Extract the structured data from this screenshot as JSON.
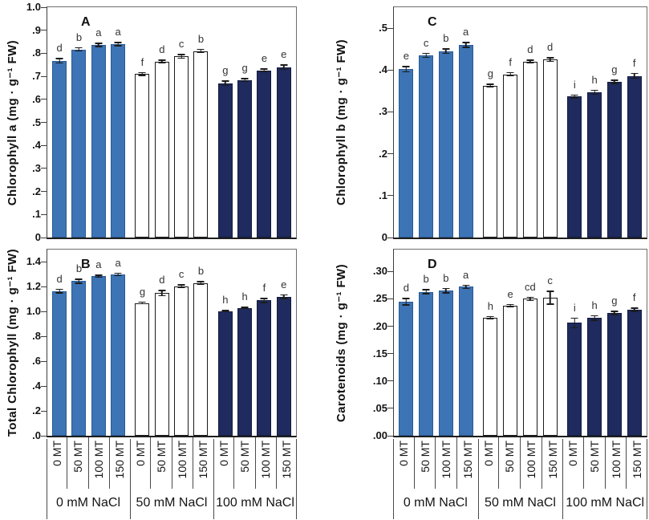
{
  "figure": {
    "background": "#ffffff",
    "x_axis": {
      "treatments": [
        "0 MT",
        "50 MT",
        "100 MT",
        "150 MT"
      ],
      "groups": [
        "0 mM NaCl",
        "50 mM NaCl",
        "100 mM NaCl"
      ]
    },
    "colors": {
      "bar_fill_by_group": [
        "#3d74b5",
        "#ffffff",
        "#1f2a5e"
      ],
      "bar_border_by_group": [
        "#2a5a94",
        "#1a1a1a",
        "#121c3e"
      ],
      "axis": "#3d3d3d",
      "text": "#1a1a1a",
      "sig_letter": "#333333"
    }
  },
  "chart_data": [
    {
      "type": "bar",
      "panel": "A",
      "ylabel": "Chlorophyll a (mg · g⁻¹ FW)",
      "ylim": [
        0,
        1.0
      ],
      "yticks": [
        {
          "v": 0,
          "label": "0"
        },
        {
          "v": 0.1,
          "label": ".1"
        },
        {
          "v": 0.2,
          "label": ".2"
        },
        {
          "v": 0.3,
          "label": ".3"
        },
        {
          "v": 0.4,
          "label": ".4"
        },
        {
          "v": 0.5,
          "label": ".5"
        },
        {
          "v": 0.6,
          "label": ".6"
        },
        {
          "v": 0.7,
          "label": ".7"
        },
        {
          "v": 0.8,
          "label": ".8"
        },
        {
          "v": 0.9,
          "label": ".9"
        },
        {
          "v": 1.0,
          "label": "1.0"
        }
      ],
      "groups": [
        {
          "category": "0 mM NaCl",
          "bars": [
            {
              "treatment": "0 MT",
              "value": 0.768,
              "err": 0.012,
              "letter": "d"
            },
            {
              "treatment": "50 MT",
              "value": 0.817,
              "err": 0.01,
              "letter": "b"
            },
            {
              "treatment": "100 MT",
              "value": 0.836,
              "err": 0.01,
              "letter": "a"
            },
            {
              "treatment": "150 MT",
              "value": 0.84,
              "err": 0.01,
              "letter": "a"
            }
          ]
        },
        {
          "category": "50 mM NaCl",
          "bars": [
            {
              "treatment": "0 MT",
              "value": 0.71,
              "err": 0.008,
              "letter": "f"
            },
            {
              "treatment": "50 MT",
              "value": 0.764,
              "err": 0.008,
              "letter": "d"
            },
            {
              "treatment": "100 MT",
              "value": 0.787,
              "err": 0.01,
              "letter": "c"
            },
            {
              "treatment": "150 MT",
              "value": 0.81,
              "err": 0.01,
              "letter": "b"
            }
          ]
        },
        {
          "category": "100 mM NaCl",
          "bars": [
            {
              "treatment": "0 MT",
              "value": 0.67,
              "err": 0.012,
              "letter": "g"
            },
            {
              "treatment": "50 MT",
              "value": 0.684,
              "err": 0.008,
              "letter": "g"
            },
            {
              "treatment": "100 MT",
              "value": 0.726,
              "err": 0.008,
              "letter": "e"
            },
            {
              "treatment": "150 MT",
              "value": 0.74,
              "err": 0.012,
              "letter": "e"
            }
          ]
        }
      ]
    },
    {
      "type": "bar",
      "panel": "B",
      "ylabel": "Total Chlorophyll (mg · g⁻¹ FW)",
      "ylim": [
        0,
        1.5
      ],
      "yticks": [
        {
          "v": 0,
          "label": ".0"
        },
        {
          "v": 0.2,
          "label": ".2"
        },
        {
          "v": 0.4,
          "label": ".4"
        },
        {
          "v": 0.6,
          "label": ".6"
        },
        {
          "v": 0.8,
          "label": ".8"
        },
        {
          "v": 1.0,
          "label": "1.0"
        },
        {
          "v": 1.2,
          "label": "1.2"
        },
        {
          "v": 1.4,
          "label": "1.4"
        }
      ],
      "groups": [
        {
          "category": "0 mM NaCl",
          "bars": [
            {
              "treatment": "0 MT",
              "value": 1.165,
              "err": 0.02,
              "letter": "d"
            },
            {
              "treatment": "50 MT",
              "value": 1.245,
              "err": 0.02,
              "letter": "b"
            },
            {
              "treatment": "100 MT",
              "value": 1.285,
              "err": 0.012,
              "letter": "a"
            },
            {
              "treatment": "150 MT",
              "value": 1.3,
              "err": 0.015,
              "letter": "a"
            }
          ]
        },
        {
          "category": "50 mM NaCl",
          "bars": [
            {
              "treatment": "0 MT",
              "value": 1.07,
              "err": 0.012,
              "letter": "g"
            },
            {
              "treatment": "50 MT",
              "value": 1.15,
              "err": 0.025,
              "letter": "d"
            },
            {
              "treatment": "100 MT",
              "value": 1.205,
              "err": 0.015,
              "letter": "c"
            },
            {
              "treatment": "150 MT",
              "value": 1.23,
              "err": 0.015,
              "letter": "b"
            }
          ]
        },
        {
          "category": "100 mM NaCl",
          "bars": [
            {
              "treatment": "0 MT",
              "value": 1.005,
              "err": 0.01,
              "letter": "h"
            },
            {
              "treatment": "50 MT",
              "value": 1.03,
              "err": 0.01,
              "letter": "h"
            },
            {
              "treatment": "100 MT",
              "value": 1.09,
              "err": 0.02,
              "letter": "f"
            },
            {
              "treatment": "150 MT",
              "value": 1.12,
              "err": 0.02,
              "letter": "e"
            }
          ]
        }
      ]
    },
    {
      "type": "bar",
      "panel": "C",
      "ylabel": "Chlorophyll b (mg · g⁻¹ FW)",
      "ylim": [
        0,
        0.55
      ],
      "yticks": [
        {
          "v": 0,
          "label": "0"
        },
        {
          "v": 0.1,
          "label": ".1"
        },
        {
          "v": 0.2,
          "label": ".2"
        },
        {
          "v": 0.3,
          "label": ".3"
        },
        {
          "v": 0.4,
          "label": ".4"
        },
        {
          "v": 0.5,
          "label": ".5"
        }
      ],
      "groups": [
        {
          "category": "0 mM NaCl",
          "bars": [
            {
              "treatment": "0 MT",
              "value": 0.402,
              "err": 0.008,
              "letter": "e"
            },
            {
              "treatment": "50 MT",
              "value": 0.435,
              "err": 0.006,
              "letter": "c"
            },
            {
              "treatment": "100 MT",
              "value": 0.445,
              "err": 0.007,
              "letter": "b"
            },
            {
              "treatment": "150 MT",
              "value": 0.46,
              "err": 0.007,
              "letter": "a"
            }
          ]
        },
        {
          "category": "50 mM NaCl",
          "bars": [
            {
              "treatment": "0 MT",
              "value": 0.363,
              "err": 0.005,
              "letter": "g"
            },
            {
              "treatment": "50 MT",
              "value": 0.39,
              "err": 0.005,
              "letter": "f"
            },
            {
              "treatment": "100 MT",
              "value": 0.42,
              "err": 0.005,
              "letter": "d"
            },
            {
              "treatment": "150 MT",
              "value": 0.425,
              "err": 0.006,
              "letter": "d"
            }
          ]
        },
        {
          "category": "100 mM NaCl",
          "bars": [
            {
              "treatment": "0 MT",
              "value": 0.337,
              "err": 0.005,
              "letter": "i"
            },
            {
              "treatment": "50 MT",
              "value": 0.347,
              "err": 0.006,
              "letter": "h"
            },
            {
              "treatment": "100 MT",
              "value": 0.372,
              "err": 0.005,
              "letter": "g"
            },
            {
              "treatment": "150 MT",
              "value": 0.386,
              "err": 0.007,
              "letter": "f"
            }
          ]
        }
      ]
    },
    {
      "type": "bar",
      "panel": "D",
      "ylabel": "Carotenoids (mg · g⁻¹ FW)",
      "ylim": [
        0,
        0.34
      ],
      "yticks": [
        {
          "v": 0,
          "label": ".00"
        },
        {
          "v": 0.05,
          "label": ".05"
        },
        {
          "v": 0.1,
          "label": ".10"
        },
        {
          "v": 0.15,
          "label": ".15"
        },
        {
          "v": 0.2,
          "label": ".20"
        },
        {
          "v": 0.25,
          "label": ".25"
        },
        {
          "v": 0.3,
          "label": ".30"
        }
      ],
      "groups": [
        {
          "category": "0 mM NaCl",
          "bars": [
            {
              "treatment": "0 MT",
              "value": 0.245,
              "err": 0.007,
              "letter": "d"
            },
            {
              "treatment": "50 MT",
              "value": 0.263,
              "err": 0.005,
              "letter": "b"
            },
            {
              "treatment": "100 MT",
              "value": 0.265,
              "err": 0.005,
              "letter": "b"
            },
            {
              "treatment": "150 MT",
              "value": 0.272,
              "err": 0.004,
              "letter": "a"
            }
          ]
        },
        {
          "category": "50 mM NaCl",
          "bars": [
            {
              "treatment": "0 MT",
              "value": 0.216,
              "err": 0.003,
              "letter": "h"
            },
            {
              "treatment": "50 MT",
              "value": 0.238,
              "err": 0.003,
              "letter": "e"
            },
            {
              "treatment": "100 MT",
              "value": 0.25,
              "err": 0.004,
              "letter": "cd"
            },
            {
              "treatment": "150 MT",
              "value": 0.252,
              "err": 0.013,
              "letter": "c"
            }
          ]
        },
        {
          "category": "100 mM NaCl",
          "bars": [
            {
              "treatment": "0 MT",
              "value": 0.206,
              "err": 0.01,
              "letter": "i"
            },
            {
              "treatment": "50 MT",
              "value": 0.215,
              "err": 0.005,
              "letter": "h"
            },
            {
              "treatment": "100 MT",
              "value": 0.224,
              "err": 0.004,
              "letter": "g"
            },
            {
              "treatment": "150 MT",
              "value": 0.23,
              "err": 0.004,
              "letter": "f"
            }
          ]
        }
      ]
    }
  ]
}
